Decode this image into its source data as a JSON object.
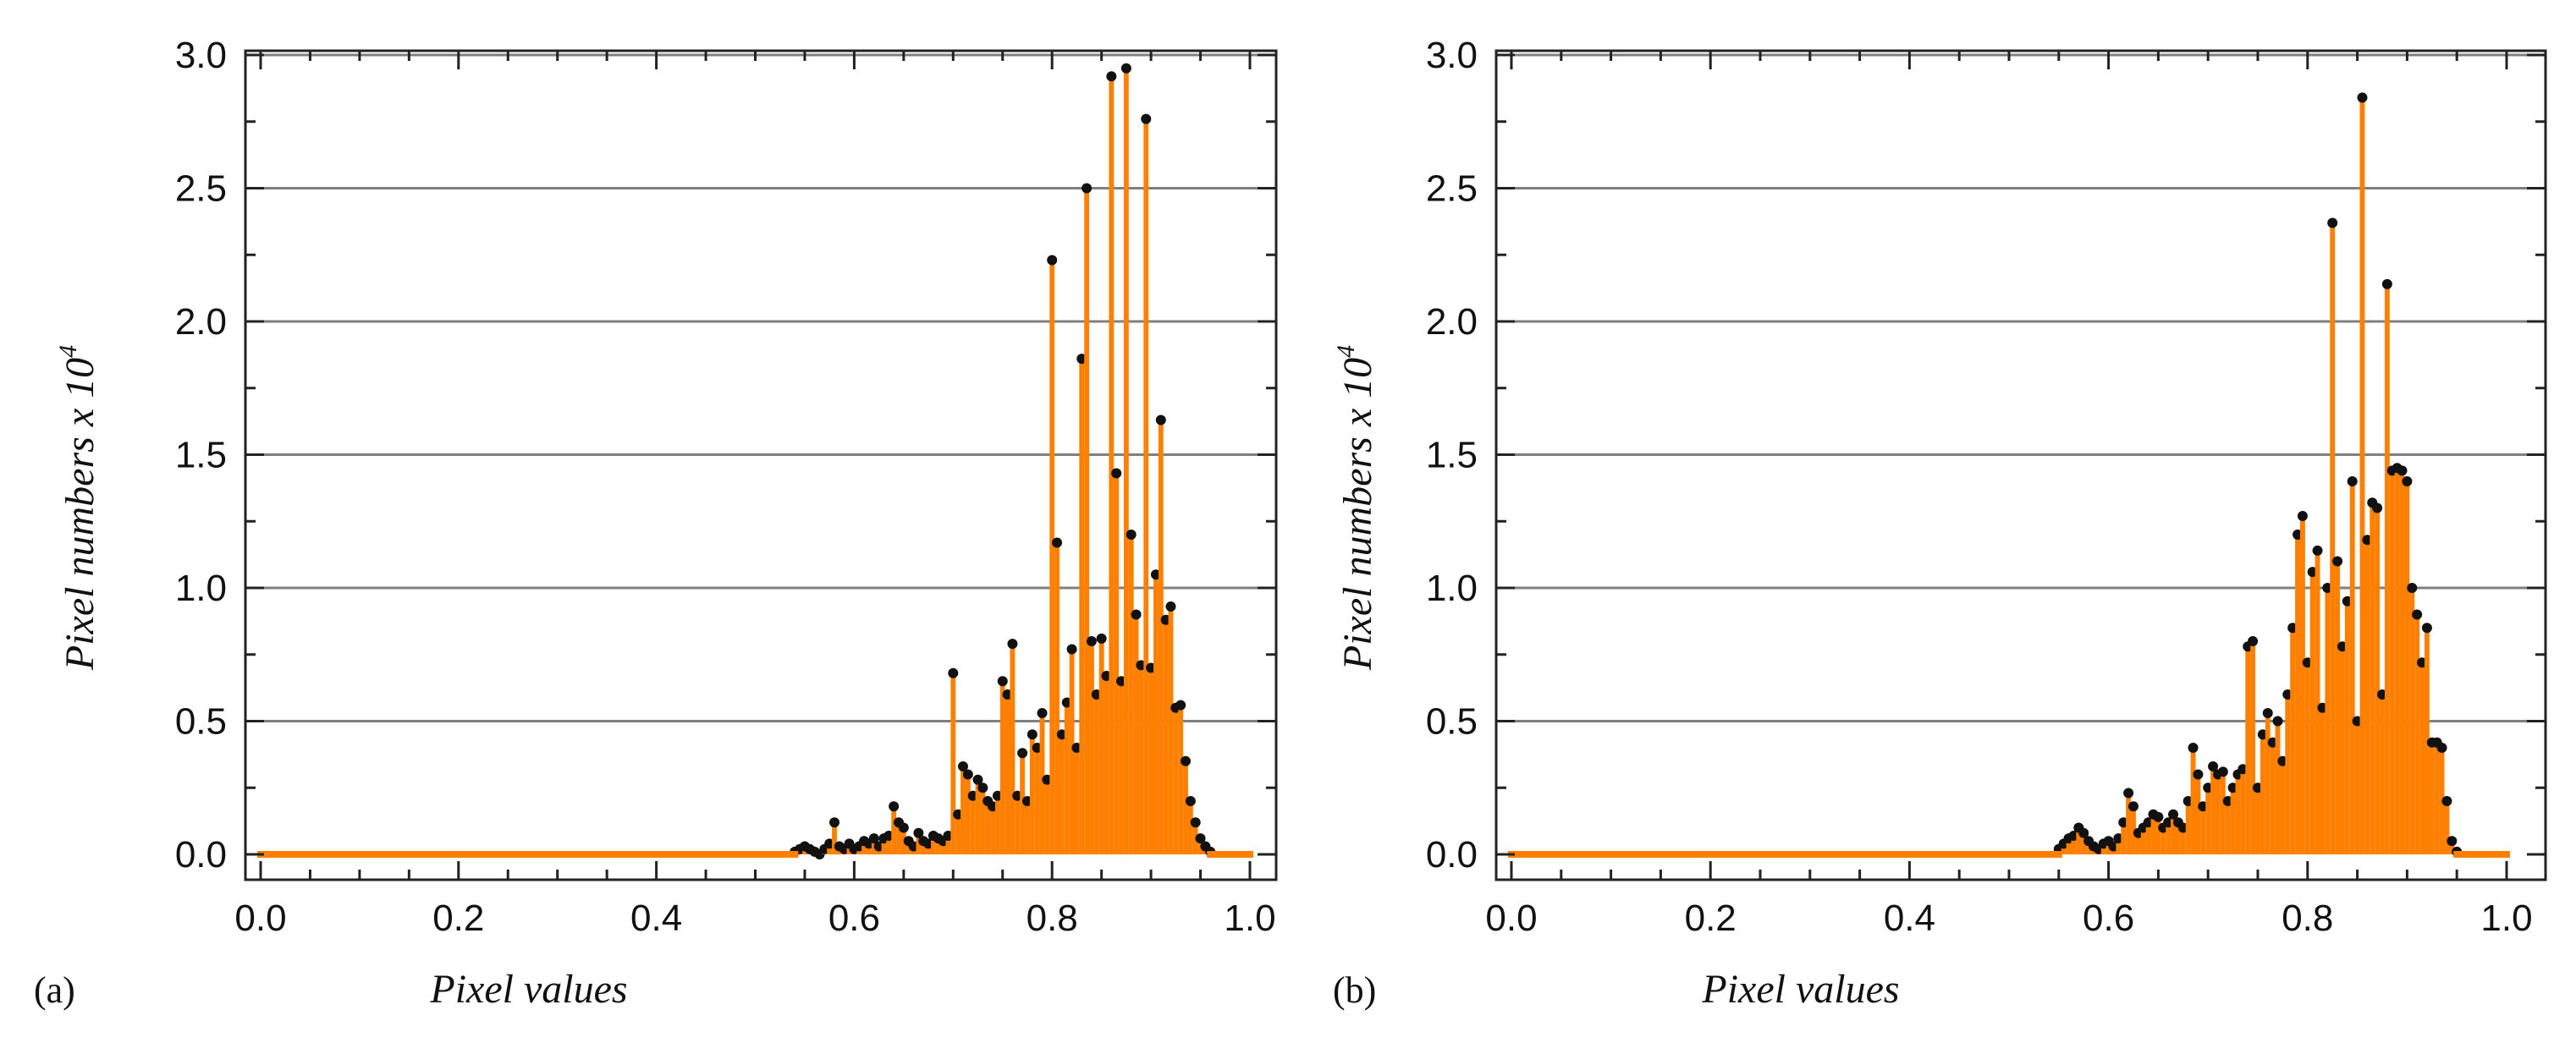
{
  "colors": {
    "bar": "#ff8000",
    "marker": "#111111",
    "grid": "#7f7f7f"
  },
  "chart_data": [
    {
      "type": "bar",
      "panel_label": "(a)",
      "xlabel": "Pixel values",
      "ylabel_main": "Pixel numbers x 10",
      "ylabel_exp": "4",
      "xlim": [
        0,
        1.0
      ],
      "ylim": [
        0,
        3.0
      ],
      "xticks": [
        "0.0",
        "0.2",
        "0.4",
        "0.6",
        "0.8",
        "1.0"
      ],
      "yticks": [
        "0.0",
        "0.5",
        "1.0",
        "1.5",
        "2.0",
        "2.5",
        "3.0"
      ],
      "grid": "horizontal",
      "x": [
        0.54,
        0.545,
        0.55,
        0.555,
        0.56,
        0.565,
        0.57,
        0.575,
        0.58,
        0.585,
        0.59,
        0.595,
        0.6,
        0.605,
        0.61,
        0.615,
        0.62,
        0.625,
        0.63,
        0.635,
        0.64,
        0.645,
        0.65,
        0.655,
        0.66,
        0.665,
        0.67,
        0.675,
        0.68,
        0.685,
        0.69,
        0.695,
        0.7,
        0.705,
        0.71,
        0.715,
        0.72,
        0.725,
        0.73,
        0.735,
        0.74,
        0.745,
        0.75,
        0.755,
        0.76,
        0.765,
        0.77,
        0.775,
        0.78,
        0.785,
        0.79,
        0.795,
        0.8,
        0.805,
        0.81,
        0.815,
        0.82,
        0.825,
        0.83,
        0.835,
        0.84,
        0.845,
        0.85,
        0.855,
        0.86,
        0.865,
        0.87,
        0.875,
        0.88,
        0.885,
        0.89,
        0.895,
        0.9,
        0.905,
        0.91,
        0.915,
        0.92,
        0.925,
        0.93,
        0.935,
        0.94,
        0.945,
        0.95,
        0.955,
        0.96
      ],
      "y": [
        0.01,
        0.02,
        0.03,
        0.02,
        0.01,
        0.0,
        0.02,
        0.04,
        0.12,
        0.03,
        0.02,
        0.04,
        0.02,
        0.03,
        0.05,
        0.04,
        0.06,
        0.03,
        0.06,
        0.07,
        0.18,
        0.12,
        0.1,
        0.05,
        0.03,
        0.08,
        0.05,
        0.04,
        0.07,
        0.06,
        0.05,
        0.07,
        0.68,
        0.15,
        0.33,
        0.3,
        0.22,
        0.28,
        0.25,
        0.2,
        0.18,
        0.22,
        0.65,
        0.6,
        0.79,
        0.22,
        0.38,
        0.2,
        0.45,
        0.4,
        0.53,
        0.28,
        2.23,
        1.17,
        0.45,
        0.57,
        0.77,
        0.4,
        1.86,
        2.5,
        0.8,
        0.6,
        0.81,
        0.67,
        2.92,
        1.43,
        0.65,
        2.95,
        1.2,
        0.9,
        0.71,
        2.76,
        0.7,
        1.05,
        1.63,
        0.88,
        0.93,
        0.55,
        0.56,
        0.35,
        0.2,
        0.12,
        0.06,
        0.03,
        0.01
      ]
    },
    {
      "type": "bar",
      "panel_label": "(b)",
      "xlabel": "Pixel values",
      "ylabel_main": "Pixel numbers x 10",
      "ylabel_exp": "4",
      "xlim": [
        0,
        1.0
      ],
      "ylim": [
        0,
        3.0
      ],
      "xticks": [
        "0.0",
        "0.2",
        "0.4",
        "0.6",
        "0.8",
        "1.0"
      ],
      "yticks": [
        "0.0",
        "0.5",
        "1.0",
        "1.5",
        "2.0",
        "2.5",
        "3.0"
      ],
      "grid": "horizontal",
      "x": [
        0.55,
        0.555,
        0.56,
        0.565,
        0.57,
        0.575,
        0.58,
        0.585,
        0.59,
        0.595,
        0.6,
        0.605,
        0.61,
        0.615,
        0.62,
        0.625,
        0.63,
        0.635,
        0.64,
        0.645,
        0.65,
        0.655,
        0.66,
        0.665,
        0.67,
        0.675,
        0.68,
        0.685,
        0.69,
        0.695,
        0.7,
        0.705,
        0.71,
        0.715,
        0.72,
        0.725,
        0.73,
        0.735,
        0.74,
        0.745,
        0.75,
        0.755,
        0.76,
        0.765,
        0.77,
        0.775,
        0.78,
        0.785,
        0.79,
        0.795,
        0.8,
        0.805,
        0.81,
        0.815,
        0.82,
        0.825,
        0.83,
        0.835,
        0.84,
        0.845,
        0.85,
        0.855,
        0.86,
        0.865,
        0.87,
        0.875,
        0.88,
        0.885,
        0.89,
        0.895,
        0.9,
        0.905,
        0.91,
        0.915,
        0.92,
        0.925,
        0.93,
        0.935,
        0.94,
        0.945,
        0.95
      ],
      "y": [
        0.02,
        0.04,
        0.06,
        0.07,
        0.1,
        0.08,
        0.05,
        0.03,
        0.02,
        0.04,
        0.05,
        0.03,
        0.06,
        0.12,
        0.23,
        0.18,
        0.08,
        0.1,
        0.12,
        0.15,
        0.14,
        0.1,
        0.12,
        0.15,
        0.12,
        0.1,
        0.2,
        0.4,
        0.3,
        0.18,
        0.25,
        0.33,
        0.3,
        0.31,
        0.2,
        0.25,
        0.3,
        0.32,
        0.78,
        0.8,
        0.25,
        0.45,
        0.53,
        0.42,
        0.5,
        0.35,
        0.6,
        0.85,
        1.2,
        1.27,
        0.72,
        1.06,
        1.14,
        0.55,
        1.0,
        2.37,
        1.1,
        0.78,
        0.95,
        1.4,
        0.5,
        2.84,
        1.18,
        1.32,
        1.3,
        0.6,
        2.14,
        1.44,
        1.45,
        1.44,
        1.4,
        1.0,
        0.9,
        0.72,
        0.85,
        0.42,
        0.42,
        0.4,
        0.2,
        0.05,
        0.01
      ]
    }
  ]
}
